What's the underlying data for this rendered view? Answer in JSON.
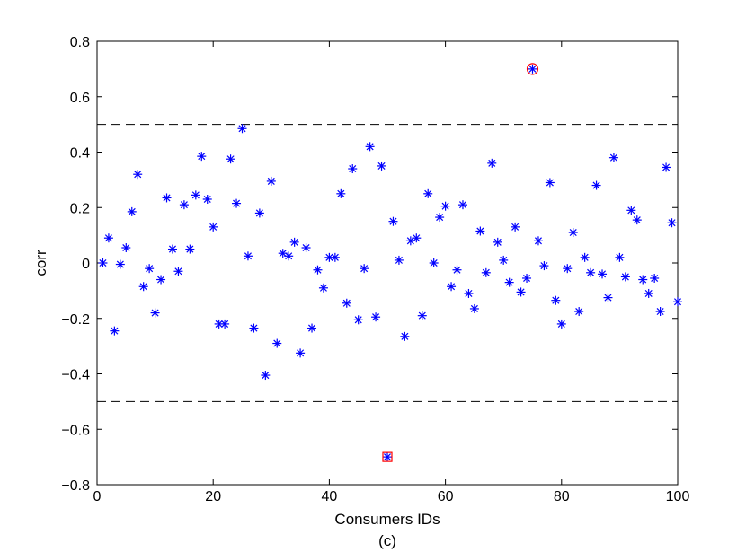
{
  "chart_data": {
    "type": "scatter",
    "title": "",
    "caption": "(c)",
    "xlabel": "Consumers IDs",
    "ylabel": "corr",
    "xlim": [
      0,
      100
    ],
    "ylim": [
      -0.8,
      0.8
    ],
    "x_ticks": [
      "0",
      "20",
      "40",
      "60",
      "80",
      "100"
    ],
    "y_ticks": [
      "−0.8",
      "−0.6",
      "−0.4",
      "−0.2",
      "0",
      "0.2",
      "0.4",
      "0.6",
      "0.8"
    ],
    "grid": false,
    "marker_color": "#0000ff",
    "highlight_color": "#ff0000",
    "reference_lines": [
      0.5,
      -0.5
    ],
    "series": [
      {
        "x": [
          1,
          2,
          3,
          4,
          5,
          6,
          7,
          8,
          9,
          10,
          11,
          12,
          13,
          14,
          15,
          16,
          17,
          18,
          19,
          20,
          21,
          22,
          23,
          24,
          25,
          26,
          27,
          28,
          29,
          30,
          31,
          32,
          33,
          34,
          35,
          36,
          37,
          38,
          39,
          40,
          41,
          42,
          43,
          44,
          45,
          46,
          47,
          48,
          49,
          50,
          51,
          52,
          53,
          54,
          55,
          56,
          57,
          58,
          59,
          60,
          61,
          62,
          63,
          64,
          65,
          66,
          67,
          68,
          69,
          70,
          71,
          72,
          73,
          74,
          75,
          76,
          77,
          78,
          79,
          80,
          81,
          82,
          83,
          84,
          85,
          86,
          87,
          88,
          89,
          90,
          91,
          92,
          93,
          94,
          95,
          96,
          97,
          98,
          99,
          100
        ],
        "values": [
          0.0,
          0.09,
          -0.245,
          -0.005,
          0.055,
          0.185,
          0.32,
          -0.085,
          -0.02,
          -0.18,
          -0.06,
          0.235,
          0.05,
          -0.03,
          0.21,
          0.05,
          0.245,
          0.385,
          0.23,
          0.13,
          -0.22,
          -0.22,
          0.375,
          0.215,
          0.485,
          0.025,
          -0.235,
          0.18,
          -0.405,
          0.295,
          -0.29,
          0.035,
          0.025,
          0.075,
          -0.325,
          0.055,
          -0.235,
          -0.025,
          -0.09,
          0.02,
          0.02,
          0.25,
          -0.145,
          0.34,
          -0.205,
          -0.02,
          0.42,
          -0.195,
          0.35,
          -0.7,
          0.15,
          0.01,
          -0.265,
          0.08,
          0.09,
          -0.19,
          0.25,
          0.0,
          0.165,
          0.205,
          -0.085,
          -0.025,
          0.21,
          -0.11,
          -0.165,
          0.115,
          -0.035,
          0.36,
          0.075,
          0.01,
          -0.07,
          0.13,
          -0.105,
          -0.055,
          0.7,
          0.08,
          -0.01,
          0.29,
          -0.135,
          -0.22,
          -0.02,
          0.11,
          -0.175,
          0.02,
          -0.035,
          0.28,
          -0.04,
          -0.125,
          0.38,
          0.02,
          -0.05,
          0.19,
          0.155,
          -0.06,
          -0.11,
          -0.055,
          -0.175,
          0.345,
          0.145,
          -0.14
        ]
      }
    ],
    "highlighted_points": [
      {
        "x": 75,
        "y": 0.7
      },
      {
        "x": 50,
        "y": -0.7
      }
    ]
  }
}
